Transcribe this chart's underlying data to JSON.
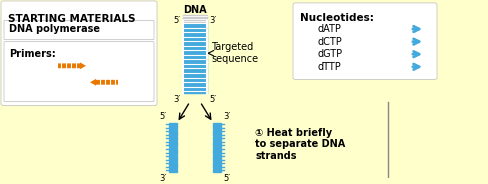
{
  "bg_color": "#FFFFCC",
  "title_text": "STARTING MATERIALS",
  "title_color": "#000000",
  "dna_label": "DNA",
  "dna_color_light": "#AADDFF",
  "dna_color_dark": "#CCCCCC",
  "dna_rung_color": "#888888",
  "strand_color": "#44AADD",
  "nucleotides_box_color": "#FFFFFF",
  "nucleotides": [
    "dATP",
    "dCTP",
    "dGTP",
    "dTTP"
  ],
  "nucleotide_arrow_color": "#44AADD",
  "primer_arrow_color": "#E87800",
  "annotation_text": "Targeted\nsequence",
  "step_text": "① Heat briefly\nto separate DNA\nstrands",
  "five_prime": "5′",
  "three_prime": "3′",
  "box_color": "#FFFFFF",
  "line_color": "#888888"
}
